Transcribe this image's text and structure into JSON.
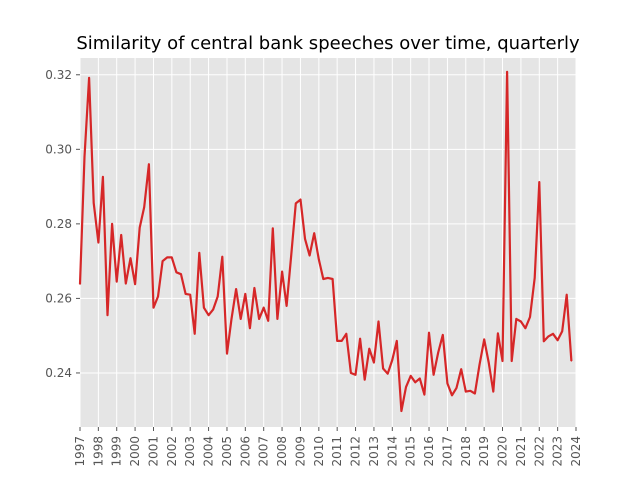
{
  "chart_data": {
    "type": "line",
    "title": "Similarity of central bank speeches over time, quarterly",
    "xlabel": "",
    "ylabel": "",
    "x_ticks": [
      "1997",
      "1998",
      "1999",
      "2000",
      "2001",
      "2002",
      "2003",
      "2004",
      "2005",
      "2006",
      "2007",
      "2008",
      "2009",
      "2010",
      "2011",
      "2012",
      "2013",
      "2014",
      "2015",
      "2016",
      "2017",
      "2018",
      "2019",
      "2020",
      "2021",
      "2022",
      "2023",
      "2024"
    ],
    "y_ticks": [
      0.24,
      0.26,
      0.28,
      0.3,
      0.32
    ],
    "y_tick_labels": [
      "0.24",
      "0.26",
      "0.28",
      "0.30",
      "0.32"
    ],
    "xlim": [
      "1997-01-01",
      "2024-01-01"
    ],
    "ylim": [
      0.2255,
      0.3245
    ],
    "grid": true,
    "series": [
      {
        "color": "#d62728",
        "x": [
          "1997-01-01",
          "1997-04-01",
          "1997-07-01",
          "1997-10-01",
          "1998-01-01",
          "1998-04-01",
          "1998-07-01",
          "1998-10-01",
          "1999-01-01",
          "1999-04-01",
          "1999-07-01",
          "1999-10-01",
          "2000-01-01",
          "2000-04-01",
          "2000-07-01",
          "2000-10-01",
          "2001-01-01",
          "2001-04-01",
          "2001-07-01",
          "2001-10-01",
          "2002-01-01",
          "2002-04-01",
          "2002-07-01",
          "2002-10-01",
          "2003-01-01",
          "2003-04-01",
          "2003-07-01",
          "2003-10-01",
          "2004-01-01",
          "2004-04-01",
          "2004-07-01",
          "2004-10-01",
          "2005-01-01",
          "2005-04-01",
          "2005-07-01",
          "2005-10-01",
          "2006-01-01",
          "2006-04-01",
          "2006-07-01",
          "2006-10-01",
          "2007-01-01",
          "2007-04-01",
          "2007-07-01",
          "2007-10-01",
          "2008-01-01",
          "2008-04-01",
          "2008-07-01",
          "2008-10-01",
          "2009-01-01",
          "2009-04-01",
          "2009-07-01",
          "2009-10-01",
          "2010-01-01",
          "2010-04-01",
          "2010-07-01",
          "2010-10-01",
          "2011-01-01",
          "2011-04-01",
          "2011-07-01",
          "2011-10-01",
          "2012-01-01",
          "2012-04-01",
          "2012-07-01",
          "2012-10-01",
          "2013-01-01",
          "2013-04-01",
          "2013-07-01",
          "2013-10-01",
          "2014-01-01",
          "2014-04-01",
          "2014-07-01",
          "2014-10-01",
          "2015-01-01",
          "2015-04-01",
          "2015-07-01",
          "2015-10-01",
          "2016-01-01",
          "2016-04-01",
          "2016-07-01",
          "2016-10-01",
          "2017-01-01",
          "2017-04-01",
          "2017-07-01",
          "2017-10-01",
          "2018-01-01",
          "2018-04-01",
          "2018-07-01",
          "2018-10-01",
          "2019-01-01",
          "2019-04-01",
          "2019-07-01",
          "2019-10-01",
          "2020-01-01",
          "2020-04-01",
          "2020-07-01",
          "2020-10-01",
          "2021-01-01",
          "2021-04-01",
          "2021-07-01",
          "2021-10-01",
          "2022-01-01",
          "2022-04-01",
          "2022-07-01",
          "2022-10-01",
          "2023-01-01",
          "2023-04-01",
          "2023-07-01",
          "2023-10-01"
        ],
        "y": [
          0.2638,
          0.298,
          0.3192,
          0.2856,
          0.275,
          0.2926,
          0.2555,
          0.28,
          0.2645,
          0.277,
          0.264,
          0.2708,
          0.2638,
          0.279,
          0.2845,
          0.296,
          0.2575,
          0.2605,
          0.27,
          0.271,
          0.271,
          0.267,
          0.2665,
          0.2612,
          0.261,
          0.2505,
          0.2722,
          0.2575,
          0.2555,
          0.257,
          0.2605,
          0.2712,
          0.2452,
          0.2545,
          0.2625,
          0.2545,
          0.2612,
          0.252,
          0.2628,
          0.2545,
          0.2575,
          0.254,
          0.2788,
          0.2545,
          0.2672,
          0.258,
          0.2715,
          0.2855,
          0.2865,
          0.276,
          0.2715,
          0.2775,
          0.2705,
          0.2652,
          0.2655,
          0.2652,
          0.2486,
          0.2486,
          0.2505,
          0.24,
          0.2395,
          0.2492,
          0.2382,
          0.2465,
          0.2428,
          0.2538,
          0.2412,
          0.2398,
          0.2435,
          0.2486,
          0.2298,
          0.2362,
          0.2392,
          0.2375,
          0.2385,
          0.2342,
          0.2508,
          0.2395,
          0.2455,
          0.2502,
          0.2372,
          0.234,
          0.236,
          0.241,
          0.235,
          0.2352,
          0.2345,
          0.2422,
          0.249,
          0.2428,
          0.235,
          0.2506,
          0.2432,
          0.3208,
          0.2432,
          0.2545,
          0.2538,
          0.252,
          0.255,
          0.2655,
          0.2912,
          0.2485,
          0.2498,
          0.2505,
          0.2488,
          0.2512,
          0.261,
          0.2432
        ]
      }
    ]
  }
}
